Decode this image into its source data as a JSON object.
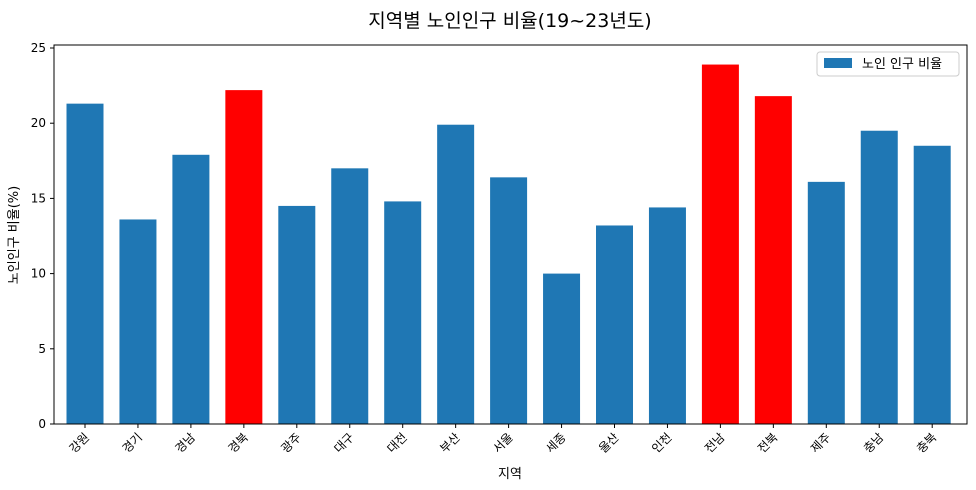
{
  "chart_data": {
    "type": "bar",
    "title": "지역별 노인인구 비율(19~23년도)",
    "xlabel": "지역",
    "ylabel": "노인인구 비율(%)",
    "ylim": [
      0,
      25.2
    ],
    "yticks": [
      0,
      5,
      10,
      15,
      20,
      25
    ],
    "categories": [
      "강원",
      "경기",
      "경남",
      "경북",
      "광주",
      "대구",
      "대전",
      "부산",
      "서울",
      "세종",
      "울산",
      "인천",
      "전남",
      "전북",
      "제주",
      "충남",
      "충북"
    ],
    "series": [
      {
        "name": "노인 인구 비율",
        "values": [
          21.3,
          13.6,
          17.9,
          22.2,
          14.5,
          17.0,
          14.8,
          19.9,
          16.4,
          10.0,
          13.2,
          14.4,
          23.9,
          21.8,
          16.1,
          19.5,
          18.5
        ]
      }
    ],
    "highlighted": [
      "경북",
      "전남",
      "전북"
    ],
    "colors": {
      "default": "#1f77b4",
      "highlight": "#ff0000"
    },
    "legend": {
      "position": "top-right"
    },
    "grid": false
  }
}
